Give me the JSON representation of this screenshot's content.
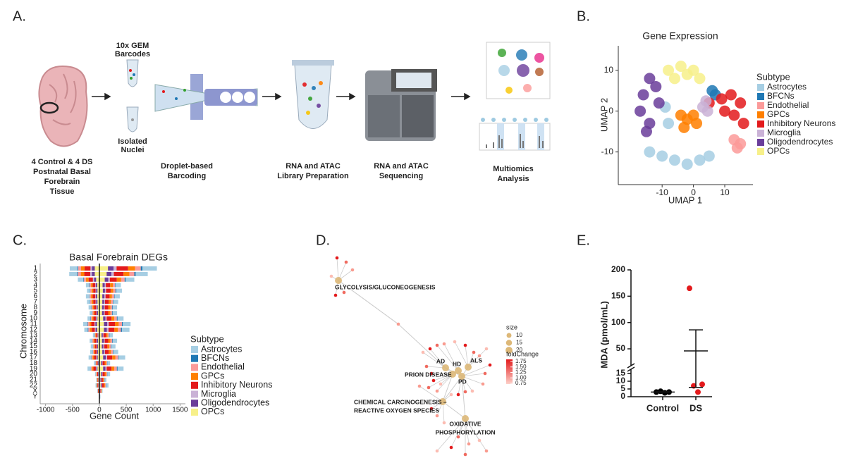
{
  "panel_labels": [
    "A.",
    "B.",
    "C.",
    "D.",
    "E."
  ],
  "schematic": {
    "gem_label": [
      "10x GEM",
      "Barcodes"
    ],
    "nuclei_label": [
      "Isolated",
      "Nuclei"
    ],
    "steps": [
      [
        "4 Control & 4 DS",
        "Postnatal Basal",
        "Forebrain",
        "Tissue"
      ],
      [
        "Droplet-based",
        "Barcoding"
      ],
      [
        "RNA and ATAC",
        "Library Preparation"
      ],
      [
        "RNA and ATAC",
        "Sequencing"
      ],
      [
        "Multiomics",
        "Analysis"
      ]
    ]
  },
  "chart_data": [
    {
      "type": "scatter",
      "title": "Gene Expression",
      "x_label": "UMAP 1",
      "y_label": "UMAP 2",
      "xlim": [
        -24,
        19
      ],
      "ylim": [
        -18,
        16
      ],
      "xticks": [
        -10,
        0,
        10
      ],
      "yticks": [
        -10,
        0,
        10
      ],
      "legend_title": "Subtype",
      "series": [
        {
          "name": "Astrocytes",
          "color": "#a6cee3",
          "x": [
            -14,
            -10,
            -6,
            -2,
            2,
            5,
            -8,
            -9
          ],
          "y": [
            -10,
            -11,
            -12,
            -13,
            -12,
            -11,
            -3,
            1
          ]
        },
        {
          "name": "BFCNs",
          "color": "#1f78b4",
          "x": [
            6,
            7
          ],
          "y": [
            5,
            4
          ]
        },
        {
          "name": "Endothelial",
          "color": "#fb9a99",
          "x": [
            13,
            14,
            15
          ],
          "y": [
            -7,
            -9,
            -8
          ]
        },
        {
          "name": "GPCs",
          "color": "#ff7f00",
          "x": [
            -4,
            -2,
            0,
            -3,
            1
          ],
          "y": [
            -1,
            -2,
            -1,
            -4,
            -3
          ]
        },
        {
          "name": "Inhibitory Neurons",
          "color": "#e31a1c",
          "x": [
            9,
            12,
            15,
            10,
            13,
            16,
            5
          ],
          "y": [
            3,
            4,
            2,
            0,
            -1,
            -3,
            2
          ]
        },
        {
          "name": "Microglia",
          "color": "#cab2d6",
          "x": [
            3,
            4,
            4.5
          ],
          "y": [
            1,
            2.5,
            0
          ]
        },
        {
          "name": "Oligodendrocytes",
          "color": "#6a3d9a",
          "x": [
            -16,
            -14,
            -12,
            -17,
            -14,
            -11,
            -15
          ],
          "y": [
            4,
            8,
            6,
            0,
            -3,
            2,
            -5
          ]
        },
        {
          "name": "OPCs",
          "color": "#f7f08a",
          "x": [
            -8,
            -4,
            0,
            2,
            -6,
            -2
          ],
          "y": [
            10,
            11,
            10,
            8,
            8,
            9
          ]
        }
      ]
    },
    {
      "type": "butterfly",
      "title": "Basal Forebrain DEGs",
      "x_label": "Gene Count",
      "y_label": "Chromosome",
      "categories": [
        "1",
        "2",
        "3",
        "4",
        "5",
        "6",
        "7",
        "8",
        "9",
        "10",
        "11",
        "12",
        "13",
        "14",
        "15",
        "16",
        "17",
        "18",
        "19",
        "20",
        "21",
        "22",
        "X",
        "Y"
      ],
      "xlim": [
        -1100,
        1600
      ],
      "xticks": [
        -1000,
        -500,
        0,
        500,
        1000,
        1500
      ],
      "legend_title": "Subtype",
      "series": [
        {
          "name": "Astrocytes",
          "color": "#a6cee3",
          "values_up": [
            270,
            225,
            160,
            100,
            105,
            95,
            90,
            80,
            80,
            110,
            145,
            140,
            60,
            80,
            75,
            90,
            120,
            50,
            110,
            50,
            30,
            45,
            15,
            10
          ],
          "values_down": [
            -140,
            -145,
            -100,
            -60,
            -55,
            -65,
            -55,
            -50,
            -45,
            -55,
            -75,
            -65,
            -30,
            -45,
            -40,
            -45,
            -50,
            -25,
            -60,
            -20,
            -15,
            -15,
            -10,
            -5
          ]
        },
        {
          "name": "BFCNs",
          "color": "#1f78b4",
          "values_up": [
            30,
            25,
            20,
            10,
            15,
            10,
            10,
            10,
            10,
            15,
            15,
            20,
            10,
            10,
            10,
            10,
            10,
            5,
            15,
            5,
            5,
            5,
            0,
            0
          ],
          "values_down": [
            -15,
            -15,
            -10,
            -10,
            -5,
            -5,
            -5,
            -5,
            -5,
            -10,
            -10,
            -10,
            -5,
            -5,
            -5,
            -5,
            -5,
            -5,
            -5,
            0,
            0,
            -5,
            0,
            0
          ]
        },
        {
          "name": "Endothelial",
          "color": "#fb9a99",
          "values_up": [
            105,
            90,
            65,
            40,
            40,
            40,
            35,
            35,
            35,
            45,
            60,
            55,
            25,
            35,
            30,
            35,
            50,
            20,
            45,
            20,
            15,
            15,
            5,
            0
          ],
          "values_down": [
            -55,
            -55,
            -40,
            -25,
            -25,
            -25,
            -25,
            -20,
            -20,
            -20,
            -30,
            -30,
            -10,
            -20,
            -15,
            -15,
            -20,
            -10,
            -20,
            -10,
            -5,
            -5,
            -5,
            0
          ]
        },
        {
          "name": "GPCs",
          "color": "#ff7f00",
          "values_up": [
            130,
            110,
            80,
            50,
            50,
            45,
            40,
            40,
            40,
            55,
            70,
            65,
            30,
            40,
            35,
            40,
            60,
            25,
            55,
            25,
            15,
            20,
            10,
            0
          ],
          "values_down": [
            -65,
            -65,
            -50,
            -30,
            -30,
            -30,
            -30,
            -25,
            -20,
            -25,
            -35,
            -35,
            -15,
            -20,
            -20,
            -20,
            -25,
            -10,
            -25,
            -10,
            -10,
            -10,
            -5,
            0
          ]
        },
        {
          "name": "Inhibitory Neurons",
          "color": "#e31a1c",
          "values_up": [
            215,
            180,
            130,
            80,
            85,
            75,
            70,
            65,
            65,
            90,
            115,
            110,
            50,
            65,
            60,
            70,
            95,
            40,
            90,
            40,
            25,
            35,
            10,
            5
          ],
          "values_down": [
            -110,
            -110,
            -80,
            -50,
            -45,
            -50,
            -45,
            -40,
            -35,
            -45,
            -60,
            -55,
            -25,
            -35,
            -30,
            -35,
            -40,
            -20,
            -45,
            -15,
            -10,
            -15,
            -10,
            -5
          ]
        },
        {
          "name": "Microglia",
          "color": "#cab2d6",
          "values_up": [
            55,
            45,
            30,
            20,
            20,
            20,
            15,
            15,
            15,
            20,
            30,
            30,
            10,
            15,
            15,
            15,
            25,
            10,
            20,
            10,
            5,
            10,
            5,
            0
          ],
          "values_down": [
            -25,
            -30,
            -20,
            -10,
            -10,
            -10,
            -10,
            -10,
            -10,
            -10,
            -15,
            -15,
            -5,
            -10,
            -10,
            -10,
            -10,
            -5,
            -10,
            -5,
            -5,
            -5,
            0,
            0
          ]
        },
        {
          "name": "Oligodendrocytes",
          "color": "#6a3d9a",
          "values_up": [
            105,
            90,
            65,
            40,
            40,
            40,
            35,
            35,
            35,
            45,
            60,
            55,
            25,
            35,
            30,
            35,
            50,
            20,
            45,
            20,
            15,
            15,
            5,
            0
          ],
          "values_down": [
            -55,
            -55,
            -40,
            -25,
            -25,
            -25,
            -25,
            -20,
            -20,
            -20,
            -30,
            -30,
            -10,
            -20,
            -15,
            -15,
            -20,
            -10,
            -20,
            -10,
            -5,
            -5,
            -5,
            0
          ]
        },
        {
          "name": "OPCs",
          "color": "#f7f08a",
          "values_up": [
            160,
            135,
            100,
            60,
            65,
            55,
            55,
            50,
            50,
            70,
            85,
            85,
            40,
            50,
            45,
            55,
            70,
            30,
            70,
            30,
            20,
            25,
            10,
            5
          ],
          "values_down": [
            -85,
            -85,
            -60,
            -40,
            -35,
            -40,
            -35,
            -30,
            -25,
            -35,
            -45,
            -40,
            -20,
            -25,
            -25,
            -25,
            -30,
            -15,
            -35,
            -10,
            -10,
            -10,
            -5,
            0
          ]
        }
      ]
    },
    {
      "type": "dot",
      "y_label": "MDA  (pmol/mL)",
      "categories": [
        "Control",
        "DS"
      ],
      "ylim_low": [
        0,
        15
      ],
      "ylim_high": [
        30,
        200
      ],
      "yticks_low": [
        0,
        5,
        10,
        15
      ],
      "yticks_high": [
        50,
        100,
        150,
        200
      ],
      "colors": [
        "#000000",
        "#e31a1c"
      ],
      "values": [
        [
          3,
          3.5,
          2.5,
          3
        ],
        [
          165,
          7,
          3,
          8
        ]
      ],
      "means": [
        3,
        46
      ],
      "errors": [
        0.3,
        40
      ]
    }
  ],
  "network": {
    "hubs": [
      {
        "label": [
          "GLYCOLYSIS/GLUCONEOGENESIS"
        ]
      },
      {
        "label": [
          "AD"
        ]
      },
      {
        "label": [
          "HD"
        ]
      },
      {
        "label": [
          "ALS"
        ]
      },
      {
        "label": [
          "PRION DISEASE"
        ]
      },
      {
        "label": [
          "PD"
        ]
      },
      {
        "label": [
          "CHEMICAL CARCINOGENESIS –",
          "REACTIVE OXYGEN SPECIES"
        ]
      },
      {
        "label": [
          "OXIDATIVE",
          "PHOSPHORYLATION"
        ]
      }
    ],
    "size_legend": {
      "title": "size",
      "values": [
        10,
        15,
        20
      ]
    },
    "color_legend": {
      "title": "foldChange",
      "ticks": [
        1.75,
        {
          "value": 1.5,
          "label": "1.50"
        },
        1.25,
        {
          "value": 1.0,
          "label": "1.00"
        },
        0.75
      ]
    }
  }
}
